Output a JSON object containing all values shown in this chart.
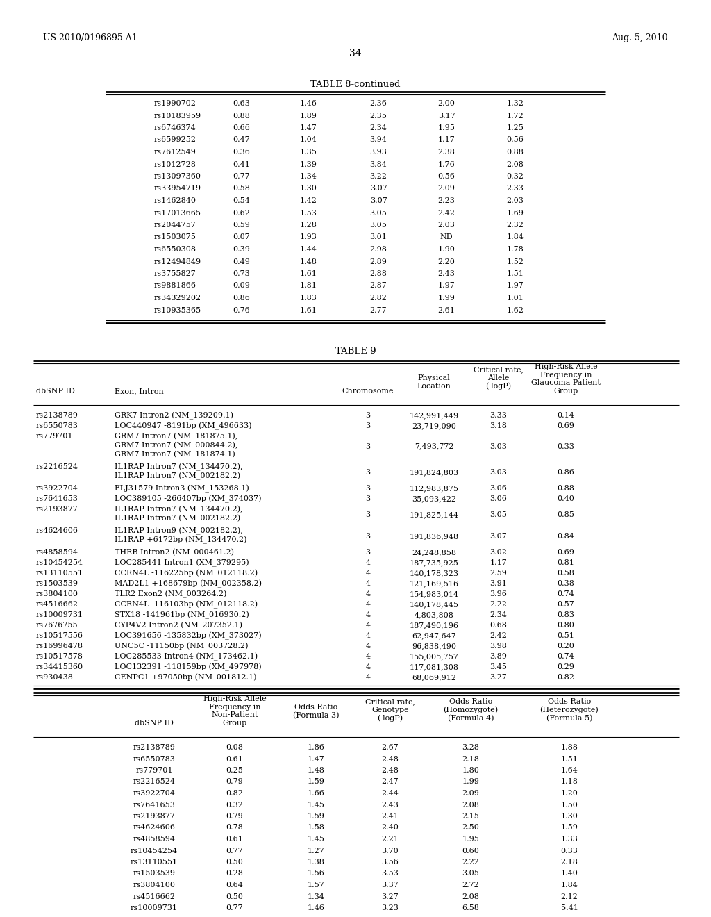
{
  "header_left": "US 2010/0196895 A1",
  "header_right": "Aug. 5, 2010",
  "page_number": "34",
  "table8_title": "TABLE 8-continued",
  "table8_rows": [
    [
      "rs1990702",
      "0.63",
      "1.46",
      "2.36",
      "2.00",
      "1.32"
    ],
    [
      "rs10183959",
      "0.88",
      "1.89",
      "2.35",
      "3.17",
      "1.72"
    ],
    [
      "rs6746374",
      "0.66",
      "1.47",
      "2.34",
      "1.95",
      "1.25"
    ],
    [
      "rs6599252",
      "0.47",
      "1.04",
      "3.94",
      "1.17",
      "0.56"
    ],
    [
      "rs7612549",
      "0.36",
      "1.35",
      "3.93",
      "2.38",
      "0.88"
    ],
    [
      "rs1012728",
      "0.41",
      "1.39",
      "3.84",
      "1.76",
      "2.08"
    ],
    [
      "rs13097360",
      "0.77",
      "1.34",
      "3.22",
      "0.56",
      "0.32"
    ],
    [
      "rs33954719",
      "0.58",
      "1.30",
      "3.07",
      "2.09",
      "2.33"
    ],
    [
      "rs1462840",
      "0.54",
      "1.42",
      "3.07",
      "2.23",
      "2.03"
    ],
    [
      "rs17013665",
      "0.62",
      "1.53",
      "3.05",
      "2.42",
      "1.69"
    ],
    [
      "rs2044757",
      "0.59",
      "1.28",
      "3.05",
      "2.03",
      "2.32"
    ],
    [
      "rs1503075",
      "0.07",
      "1.93",
      "3.01",
      "ND",
      "1.84"
    ],
    [
      "rs6550308",
      "0.39",
      "1.44",
      "2.98",
      "1.90",
      "1.78"
    ],
    [
      "rs12494849",
      "0.49",
      "1.48",
      "2.89",
      "2.20",
      "1.52"
    ],
    [
      "rs3755827",
      "0.73",
      "1.61",
      "2.88",
      "2.43",
      "1.51"
    ],
    [
      "rs9881866",
      "0.09",
      "1.81",
      "2.87",
      "1.97",
      "1.97"
    ],
    [
      "rs34329202",
      "0.86",
      "1.83",
      "2.82",
      "1.99",
      "1.01"
    ],
    [
      "rs10935365",
      "0.76",
      "1.61",
      "2.77",
      "2.61",
      "1.62"
    ]
  ],
  "table9_title": "TABLE 9",
  "table9_rows1": [
    [
      "rs2138789",
      "GRK7 Intron2 (NM_139209.1)",
      "3",
      "142,991,449",
      "3.33",
      "0.14"
    ],
    [
      "rs6550783",
      "LOC440947 -8191bp (XM_496633)",
      "3",
      "23,719,090",
      "3.18",
      "0.69"
    ],
    [
      "rs779701",
      "GRM7 Intron7 (NM_181875.1),\nGRM7 Intron7 (NM_000844.2),\nGRM7 Intron7 (NM_181874.1)",
      "3",
      "7,493,772",
      "3.03",
      "0.33"
    ],
    [
      "rs2216524",
      "IL1RAP Intron7 (NM_134470.2),\nIL1RAP Intron7 (NM_002182.2)",
      "3",
      "191,824,803",
      "3.03",
      "0.86"
    ],
    [
      "rs3922704",
      "FLJ31579 Intron3 (NM_153268.1)",
      "3",
      "112,983,875",
      "3.06",
      "0.88"
    ],
    [
      "rs7641653",
      "LOC389105 -266407bp (XM_374037)",
      "3",
      "35,093,422",
      "3.06",
      "0.40"
    ],
    [
      "rs2193877",
      "IL1RAP Intron7 (NM_134470.2),\nIL1RAP Intron7 (NM_002182.2)",
      "3",
      "191,825,144",
      "3.05",
      "0.85"
    ],
    [
      "rs4624606",
      "IL1RAP Intron9 (NM_002182.2),\nIL1RAP +6172bp (NM_134470.2)",
      "3",
      "191,836,948",
      "3.07",
      "0.84"
    ],
    [
      "rs4858594",
      "THRB Intron2 (NM_000461.2)",
      "3",
      "24,248,858",
      "3.02",
      "0.69"
    ],
    [
      "rs10454254",
      "LOC285441 Intron1 (XM_379295)",
      "4",
      "187,735,925",
      "1.17",
      "0.81"
    ],
    [
      "rs13110551",
      "CCRN4L -116225bp (NM_012118.2)",
      "4",
      "140,178,323",
      "2.59",
      "0.58"
    ],
    [
      "rs1503539",
      "MAD2L1 +168679bp (NM_002358.2)",
      "4",
      "121,169,516",
      "3.91",
      "0.38"
    ],
    [
      "rs3804100",
      "TLR2 Exon2 (NM_003264.2)",
      "4",
      "154,983,014",
      "3.96",
      "0.74"
    ],
    [
      "rs4516662",
      "CCRN4L -116103bp (NM_012118.2)",
      "4",
      "140,178,445",
      "2.22",
      "0.57"
    ],
    [
      "rs10009731",
      "STX18 -141961bp (NM_016930.2)",
      "4",
      "4,803,808",
      "2.34",
      "0.83"
    ],
    [
      "rs7676755",
      "CYP4V2 Intron2 (NM_207352.1)",
      "4",
      "187,490,196",
      "0.68",
      "0.80"
    ],
    [
      "rs10517556",
      "LOC391656 -135832bp (XM_373027)",
      "4",
      "62,947,647",
      "2.42",
      "0.51"
    ],
    [
      "rs16996478",
      "UNC5C -11150bp (NM_003728.2)",
      "4",
      "96,838,490",
      "3.98",
      "0.20"
    ],
    [
      "rs10517578",
      "LOC285533 Intron4 (NM_173462.1)",
      "4",
      "155,005,757",
      "3.89",
      "0.74"
    ],
    [
      "rs34415360",
      "LOC132391 -118159bp (XM_497978)",
      "4",
      "117,081,308",
      "3.45",
      "0.29"
    ],
    [
      "rs930438",
      "CENPC1 +97050bp (NM_001812.1)",
      "4",
      "68,069,912",
      "3.27",
      "0.82"
    ]
  ],
  "table9_rows2": [
    [
      "rs2138789",
      "0.08",
      "1.86",
      "2.67",
      "3.28",
      "1.88"
    ],
    [
      "rs6550783",
      "0.61",
      "1.47",
      "2.48",
      "2.18",
      "1.51"
    ],
    [
      "rs779701",
      "0.25",
      "1.48",
      "2.48",
      "1.80",
      "1.64"
    ],
    [
      "rs2216524",
      "0.79",
      "1.59",
      "2.47",
      "1.99",
      "1.18"
    ],
    [
      "rs3922704",
      "0.82",
      "1.66",
      "2.44",
      "2.09",
      "1.20"
    ],
    [
      "rs7641653",
      "0.32",
      "1.45",
      "2.43",
      "2.08",
      "1.50"
    ],
    [
      "rs2193877",
      "0.79",
      "1.59",
      "2.41",
      "2.15",
      "1.30"
    ],
    [
      "rs4624606",
      "0.78",
      "1.58",
      "2.40",
      "2.50",
      "1.59"
    ],
    [
      "rs4858594",
      "0.61",
      "1.45",
      "2.21",
      "1.95",
      "1.33"
    ],
    [
      "rs10454254",
      "0.77",
      "1.27",
      "3.70",
      "0.60",
      "0.33"
    ],
    [
      "rs13110551",
      "0.50",
      "1.38",
      "3.56",
      "2.22",
      "2.18"
    ],
    [
      "rs1503539",
      "0.28",
      "1.56",
      "3.53",
      "3.05",
      "1.40"
    ],
    [
      "rs3804100",
      "0.64",
      "1.57",
      "3.37",
      "2.72",
      "1.84"
    ],
    [
      "rs4516662",
      "0.50",
      "1.34",
      "3.27",
      "2.08",
      "2.12"
    ],
    [
      "rs10009731",
      "0.77",
      "1.46",
      "3.23",
      "6.58",
      "5.41"
    ]
  ]
}
